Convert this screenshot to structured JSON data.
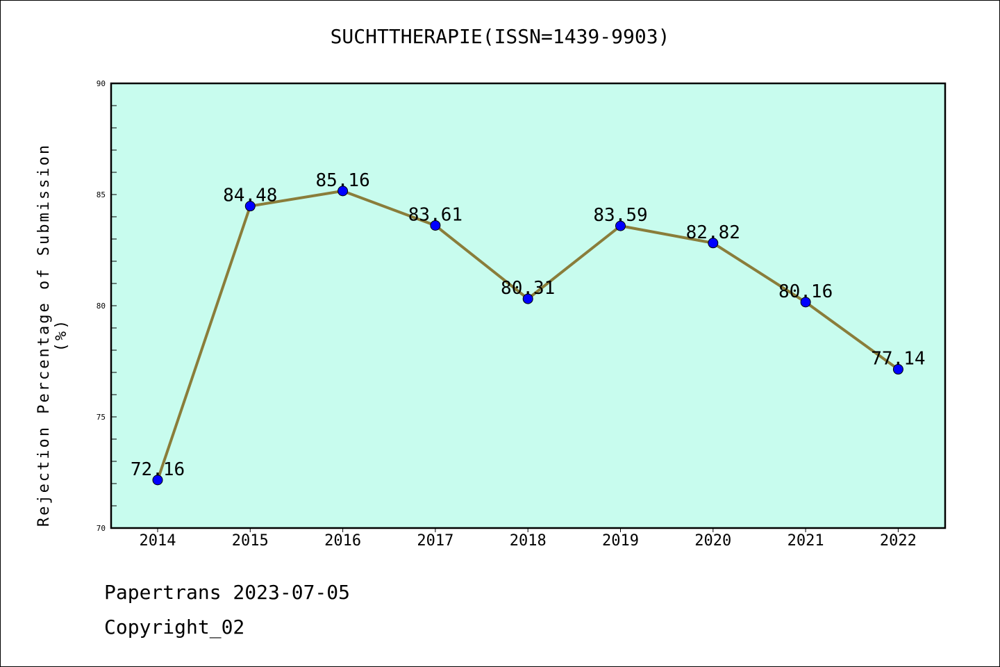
{
  "chart_data": {
    "type": "line",
    "title": "SUCHTTHERAPIE(ISSN=1439-9903)",
    "ylabel": "Rejection Percentage of Submission (%)",
    "xlabel": "",
    "categories": [
      "2014",
      "2015",
      "2016",
      "2017",
      "2018",
      "2019",
      "2020",
      "2021",
      "2022"
    ],
    "values": [
      72.16,
      84.48,
      85.16,
      83.61,
      80.31,
      83.59,
      82.82,
      80.16,
      77.14
    ],
    "data_labels": [
      "72.16",
      "84.48",
      "85.16",
      "83.61",
      "80.31",
      "83.59",
      "82.82",
      "80.16",
      "77.14"
    ],
    "ylim": [
      70,
      90
    ],
    "yticks": [
      70,
      75,
      80,
      85,
      90
    ],
    "grid": false,
    "colors": {
      "plot_background": "#c8fcee",
      "line": "#8a7d3a",
      "marker": "#0000ff"
    }
  },
  "footer": {
    "source": "Papertrans 2023-07-05",
    "copyright": "Copyright_02"
  }
}
